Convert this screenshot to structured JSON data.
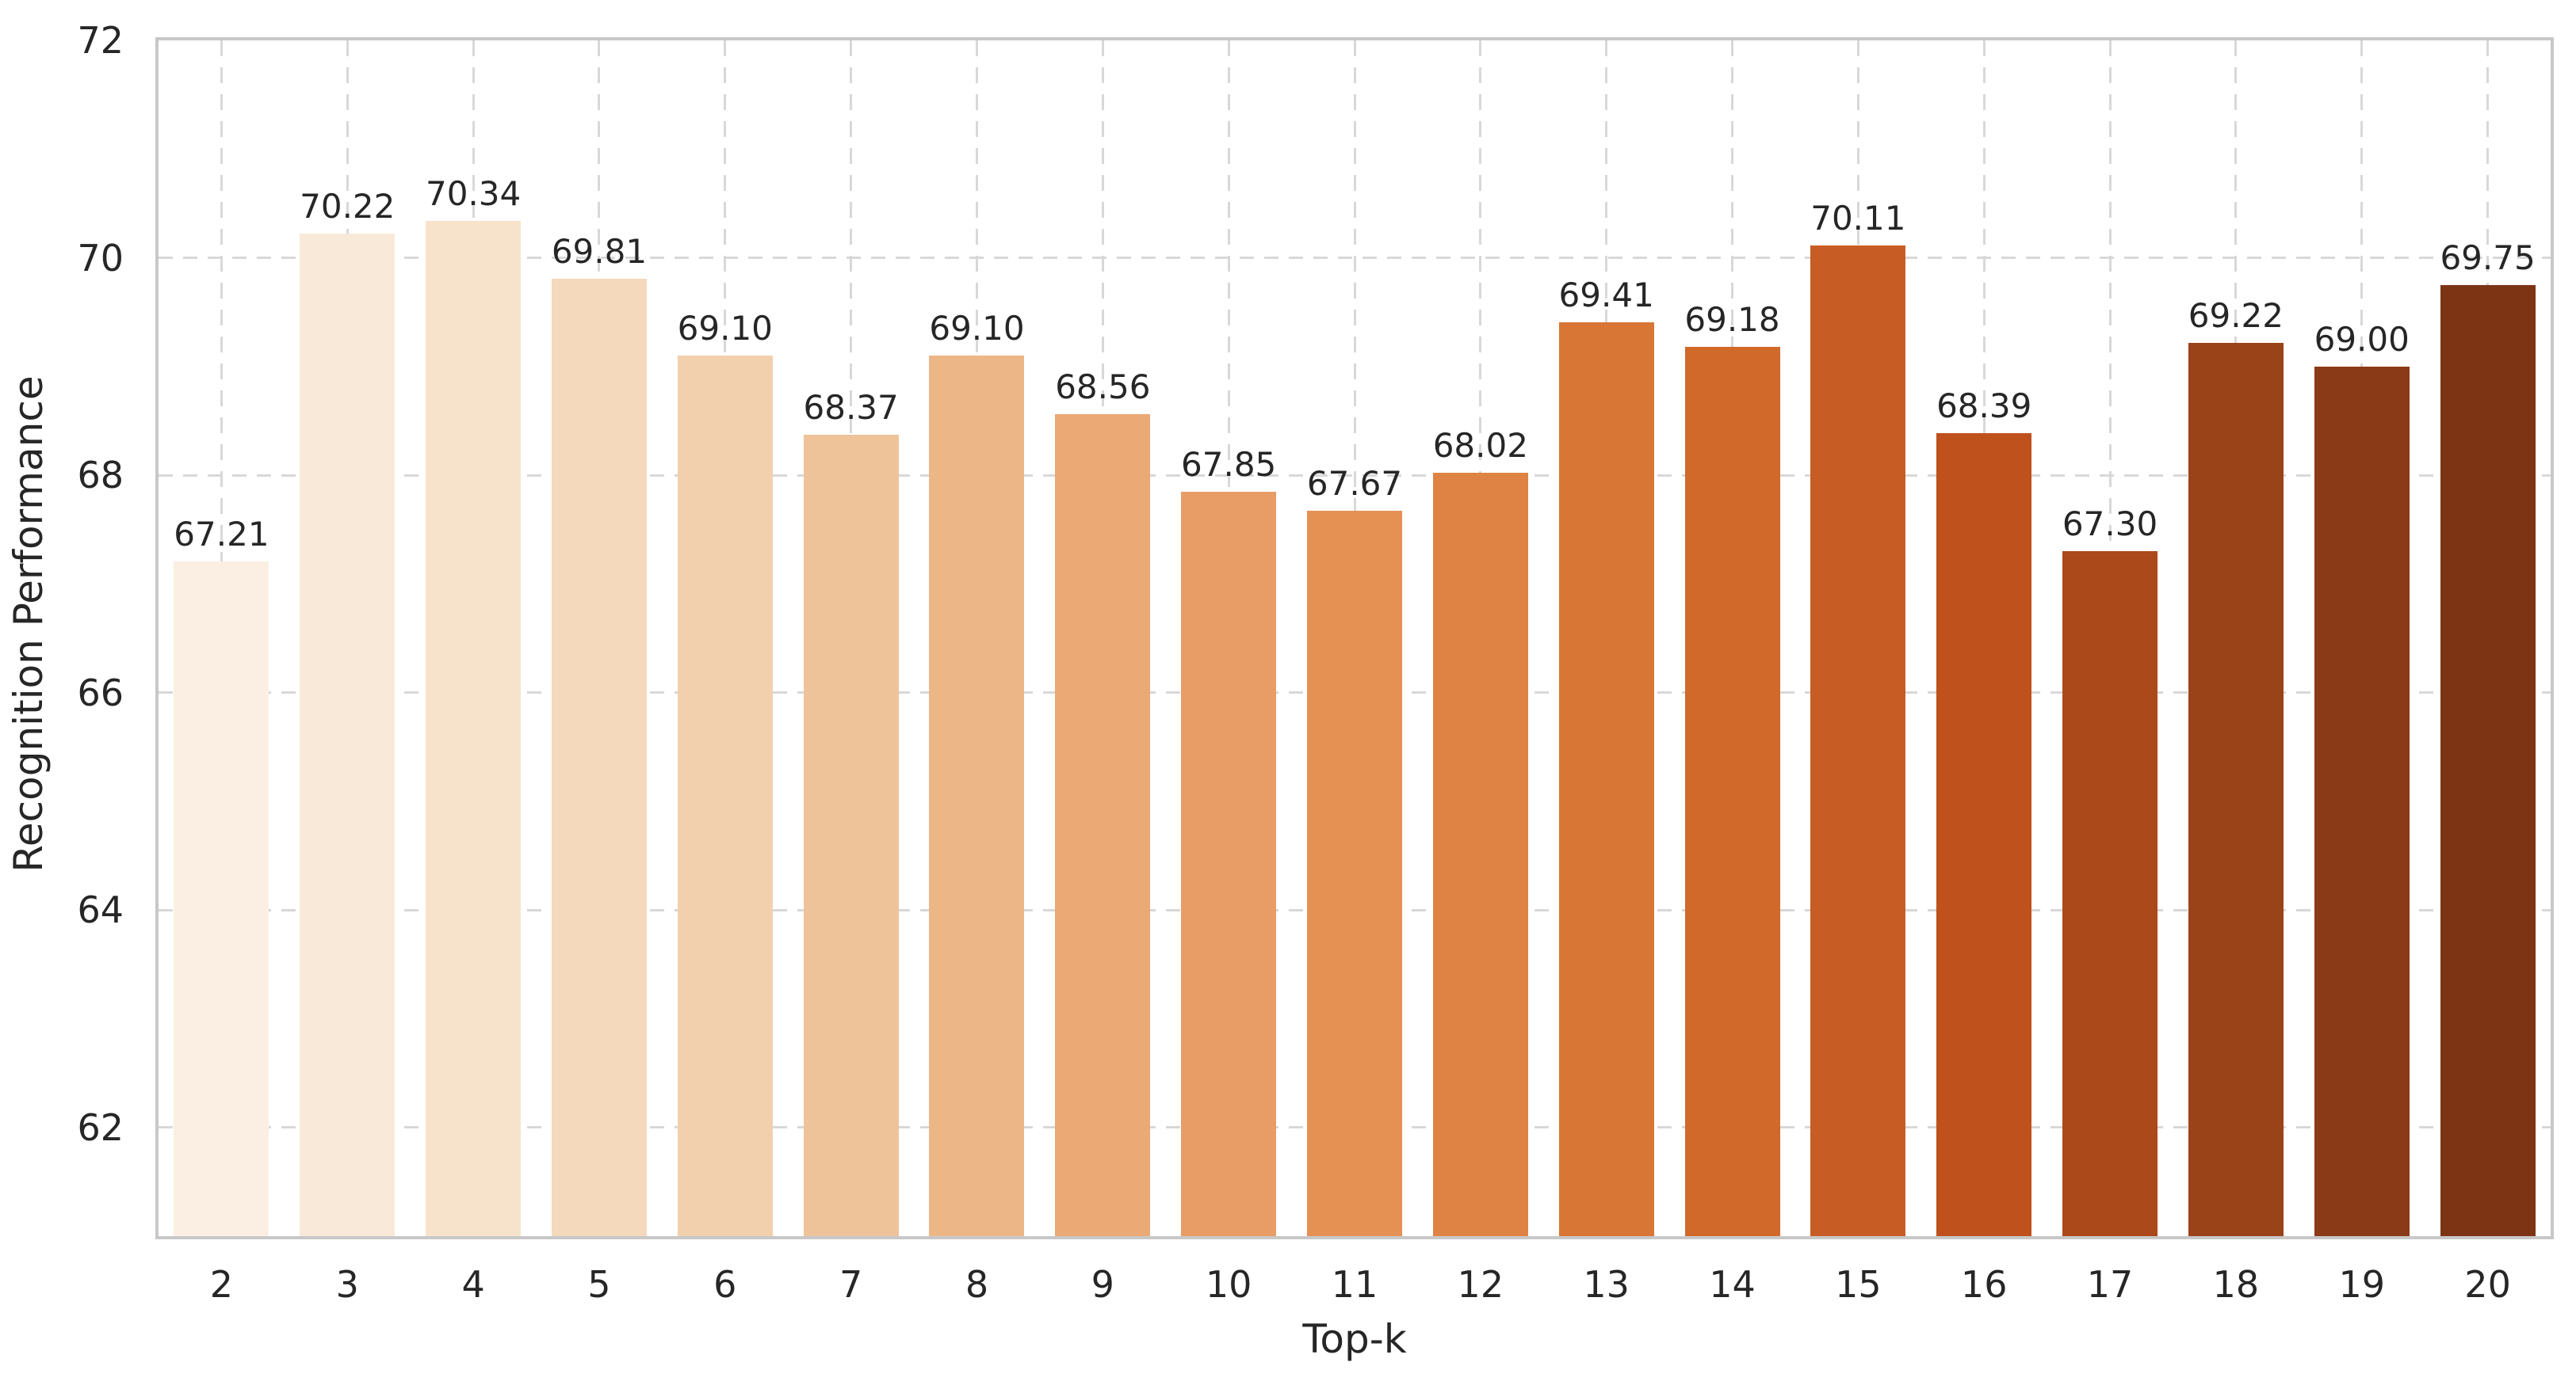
{
  "chart_data": {
    "type": "bar",
    "title": "",
    "xlabel": "Top-k",
    "ylabel": "Recognition Performance",
    "categories": [
      "2",
      "3",
      "4",
      "5",
      "6",
      "7",
      "8",
      "9",
      "10",
      "11",
      "12",
      "13",
      "14",
      "15",
      "16",
      "17",
      "18",
      "19",
      "20"
    ],
    "values": [
      67.21,
      70.22,
      70.34,
      69.81,
      69.1,
      68.37,
      69.1,
      68.56,
      67.85,
      67.67,
      68.02,
      69.41,
      69.18,
      70.11,
      68.39,
      67.3,
      69.22,
      69.0,
      69.75
    ],
    "bar_labels": [
      "67.21",
      "70.22",
      "70.34",
      "69.81",
      "69.10",
      "68.37",
      "69.10",
      "68.56",
      "67.85",
      "67.67",
      "68.02",
      "69.41",
      "69.18",
      "70.11",
      "68.39",
      "67.30",
      "69.22",
      "69.00",
      "69.75"
    ],
    "bar_colors": [
      "#fbefe3",
      "#f9e9d9",
      "#f7e2cc",
      "#f4d9bd",
      "#f2d0ad",
      "#efc39a",
      "#ecb687",
      "#eaa975",
      "#e79d65",
      "#e59154",
      "#df8345",
      "#d87636",
      "#d1692b",
      "#c75d24",
      "#be511c",
      "#ac491a",
      "#9a4218",
      "#8b3a17",
      "#7d3415"
    ],
    "y_ticks": [
      {
        "value": 72,
        "label": "72"
      },
      {
        "value": 70,
        "label": "70"
      },
      {
        "value": 68,
        "label": "68"
      },
      {
        "value": 66,
        "label": "66"
      },
      {
        "value": 64,
        "label": "64"
      },
      {
        "value": 62,
        "label": "62"
      }
    ],
    "ylim": [
      61.0,
      72.0
    ],
    "grid": {
      "horizontal": true,
      "vertical": true,
      "style": "dashed"
    },
    "legend": null
  },
  "style": {
    "background": "#ffffff",
    "text_color": "#262626",
    "grid_color": "#d8d8d8",
    "spine_color": "#c8c8c8"
  }
}
